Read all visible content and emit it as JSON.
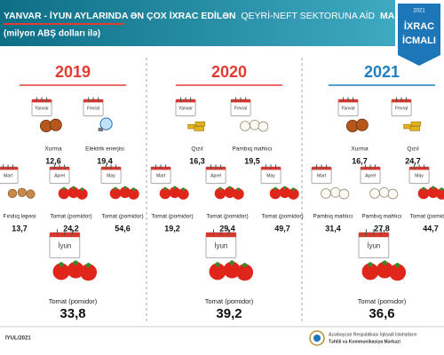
{
  "header": {
    "title_part1": "YANVAR - İYUN AYLARINDA ƏN ÇOX İXRAC EDİLƏN",
    "title_part2": "QEYRİ-NEFT SEKTORUNA AİD",
    "title_part3": "MALLAR",
    "subtitle": "(milyon ABŞ dolları ilə)",
    "badge_year": "2021",
    "badge_line1": "İXRAC",
    "badge_line2": "İCMALI"
  },
  "columns": [
    {
      "year": "2019",
      "items": [
        {
          "month": "Yanvar",
          "product": "Xurma",
          "value": "12,6"
        },
        {
          "month": "Fevral",
          "product": "Elektrik enerjisi",
          "value": "19,4"
        },
        {
          "month": "Mart",
          "product": "Fındıq ləpəsi",
          "value": "13,7"
        },
        {
          "month": "Aprel",
          "product": "Tomat (pomidor)",
          "value": "24,2"
        },
        {
          "month": "May",
          "product": "Tomat (pomidor)",
          "value": "54,6"
        },
        {
          "month": "İyun",
          "product": "Tomat (pomidor)",
          "value": "33,8"
        }
      ]
    },
    {
      "year": "2020",
      "items": [
        {
          "month": "Yanvar",
          "product": "Qızıl",
          "value": "16,3"
        },
        {
          "month": "Fevral",
          "product": "Pambıq mahlıcı",
          "value": "19,5"
        },
        {
          "month": "Mart",
          "product": "Tomat (pomidor)",
          "value": "19,2"
        },
        {
          "month": "Aprel",
          "product": "Tomat (pomidor)",
          "value": "29,4"
        },
        {
          "month": "May",
          "product": "Tomat (pomidor)",
          "value": "49,7"
        },
        {
          "month": "İyun",
          "product": "Tomat (pomidor)",
          "value": "39,2"
        }
      ]
    },
    {
      "year": "2021",
      "items": [
        {
          "month": "Yanvar",
          "product": "Xurma",
          "value": "16,7"
        },
        {
          "month": "Fevral",
          "product": "Qızıl",
          "value": "24,7"
        },
        {
          "month": "Mart",
          "product": "Pambıq mahlıcı",
          "value": "31,4"
        },
        {
          "month": "Aprel",
          "product": "Pambıq mahlıcı",
          "value": "27,8"
        },
        {
          "month": "May",
          "product": "Tomat (pomidor)",
          "value": "44,7"
        },
        {
          "month": "İyun",
          "product": "Tomat (pomidor)",
          "value": "36,6"
        }
      ]
    }
  ],
  "footer": {
    "date": "İYUL/2021",
    "org_line1": "Azərbaycan Respublikası İqtisadi İslahatların",
    "org_line2": "Təhlili və Kommunikasiya Mərkəzi"
  }
}
